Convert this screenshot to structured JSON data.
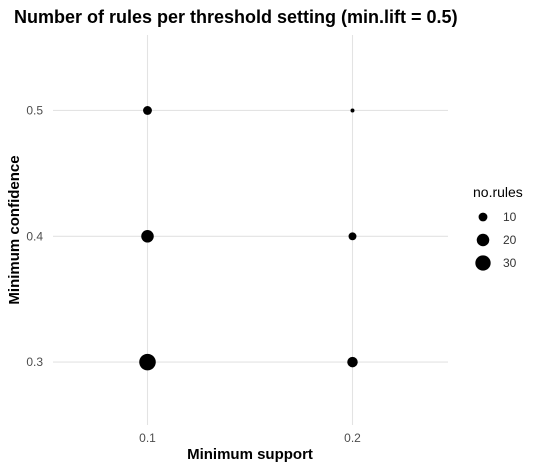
{
  "chart_data": {
    "type": "scatter",
    "title": "Number of rules per threshold setting (min.lift = 0.5)",
    "xlabel": "Minimum support",
    "ylabel": "Minimum confidence",
    "x_ticks": [
      "0.1",
      "0.2"
    ],
    "y_ticks": [
      "0.3",
      "0.4",
      "0.5"
    ],
    "xlim": [
      0.05,
      0.25
    ],
    "ylim": [
      0.25,
      0.56
    ],
    "grid": true,
    "points": [
      {
        "x": 0.1,
        "y": 0.5,
        "size": 10
      },
      {
        "x": 0.1,
        "y": 0.4,
        "size": 20
      },
      {
        "x": 0.1,
        "y": 0.3,
        "size": 35
      },
      {
        "x": 0.2,
        "y": 0.5,
        "size": 2
      },
      {
        "x": 0.2,
        "y": 0.4,
        "size": 8
      },
      {
        "x": 0.2,
        "y": 0.3,
        "size": 14
      }
    ],
    "legend": {
      "title": "no.rules",
      "placement": "right",
      "entries": [
        {
          "label": "10",
          "size": 10
        },
        {
          "label": "20",
          "size": 20
        },
        {
          "label": "30",
          "size": 30
        }
      ]
    },
    "colors": {
      "point": "#000000",
      "grid": "#e3e3e3",
      "background": "#ffffff"
    }
  }
}
